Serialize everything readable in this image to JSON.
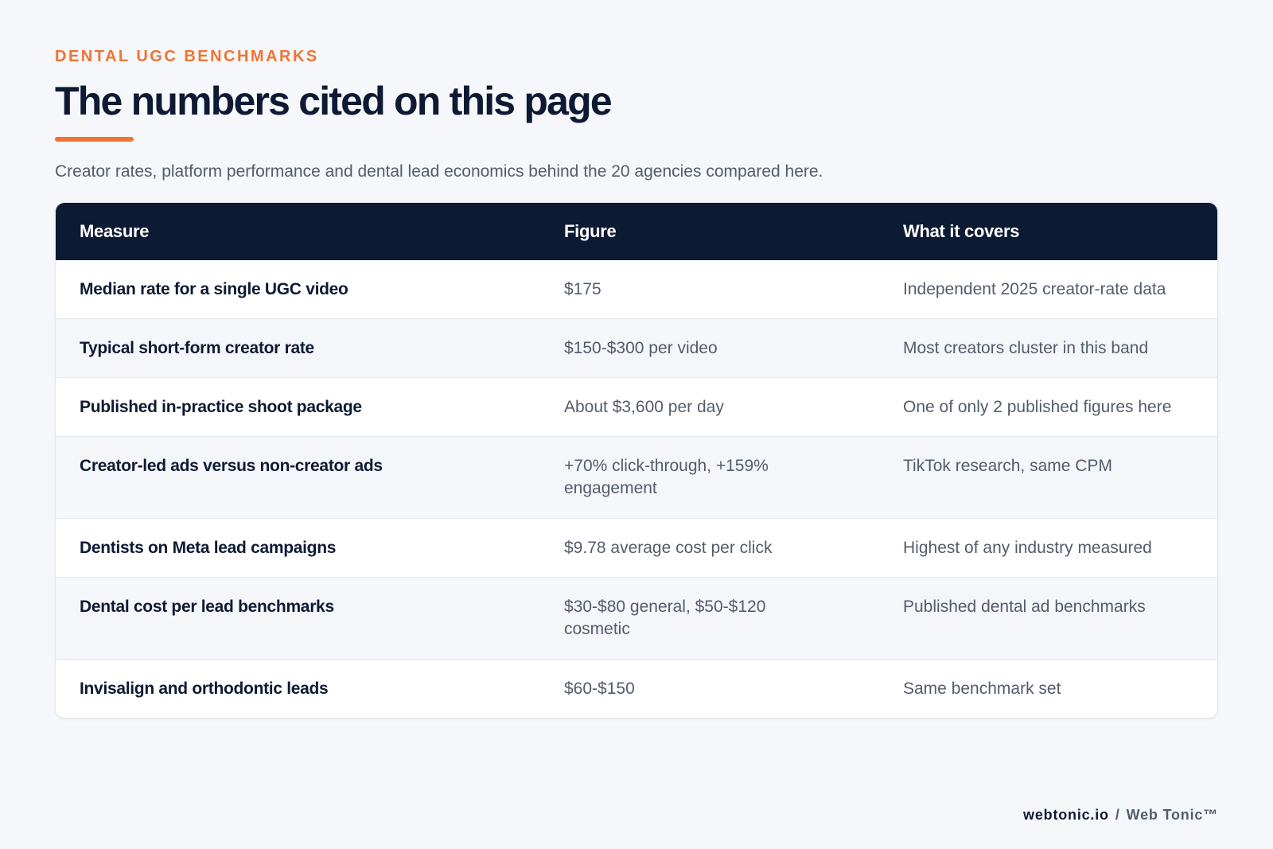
{
  "header": {
    "eyebrow": "DENTAL UGC BENCHMARKS",
    "title": "The numbers cited on this page",
    "subtitle": "Creator rates, platform performance and dental lead economics behind the 20 agencies compared here."
  },
  "table": {
    "columns": [
      "Measure",
      "Figure",
      "What it covers"
    ],
    "rows": [
      {
        "measure": "Median rate for a single UGC video",
        "figure": "$175",
        "covers": "Independent 2025 creator-rate data"
      },
      {
        "measure": "Typical short-form creator rate",
        "figure": "$150-$300 per video",
        "covers": "Most creators cluster in this band"
      },
      {
        "measure": "Published in-practice shoot package",
        "figure": "About $3,600 per day",
        "covers": "One of only 2 published figures here"
      },
      {
        "measure": "Creator-led ads versus non-creator ads",
        "figure": "+70% click-through, +159% engagement",
        "covers": "TikTok research, same CPM"
      },
      {
        "measure": "Dentists on Meta lead campaigns",
        "figure": "$9.78 average cost per click",
        "covers": "Highest of any industry measured"
      },
      {
        "measure": "Dental cost per lead benchmarks",
        "figure": "$30-$80 general, $50-$120 cosmetic",
        "covers": "Published dental ad benchmarks"
      },
      {
        "measure": "Invisalign and orthodontic leads",
        "figure": "$60-$150",
        "covers": "Same benchmark set"
      }
    ]
  },
  "footer": {
    "domain": "webtonic.io",
    "separator": "/",
    "brand": "Web Tonic™"
  },
  "colors": {
    "accent": "#f07334",
    "navy": "#0d1a33",
    "body_text": "#535c6b",
    "background": "#f5f7fa"
  }
}
